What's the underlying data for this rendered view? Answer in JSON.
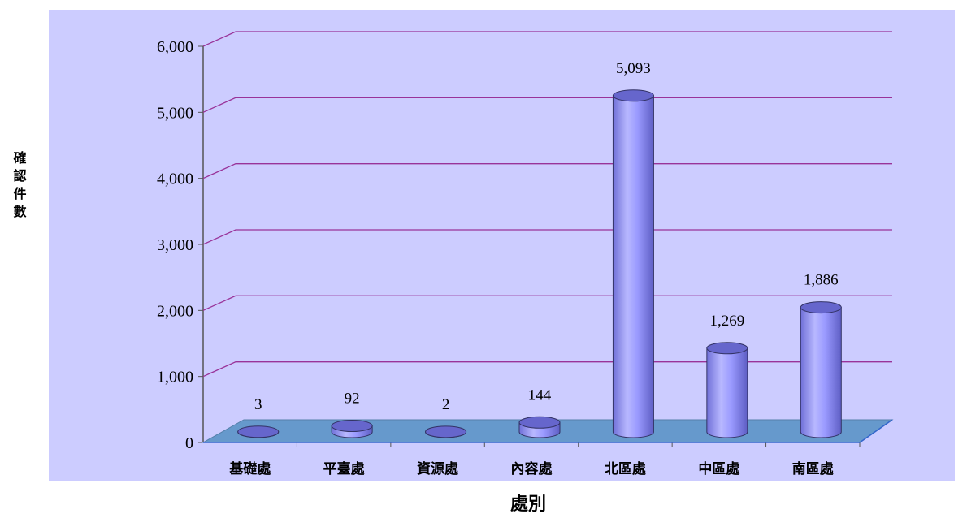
{
  "chart_data": {
    "type": "bar",
    "categories": [
      "基礎處",
      "平臺處",
      "資源處",
      "內容處",
      "北區處",
      "中區處",
      "南區處"
    ],
    "values": [
      3,
      92,
      2,
      144,
      5093,
      1269,
      1886
    ],
    "data_labels": [
      "3",
      "92",
      "2",
      "144",
      "5,093",
      "1,269",
      "1,886"
    ],
    "y_ticks": [
      "0",
      "1,000",
      "2,000",
      "3,000",
      "4,000",
      "5,000",
      "6,000"
    ],
    "ylim": [
      0,
      6000
    ],
    "xlabel": "處別",
    "ylabel": "確認件數",
    "grid": true,
    "legend": "none",
    "colors": {
      "plot_background": "#ccccff",
      "gridline": "#993399",
      "floor": "#6699cc",
      "bar_body": "#9999ff",
      "bar_top": "#6666cc"
    }
  }
}
